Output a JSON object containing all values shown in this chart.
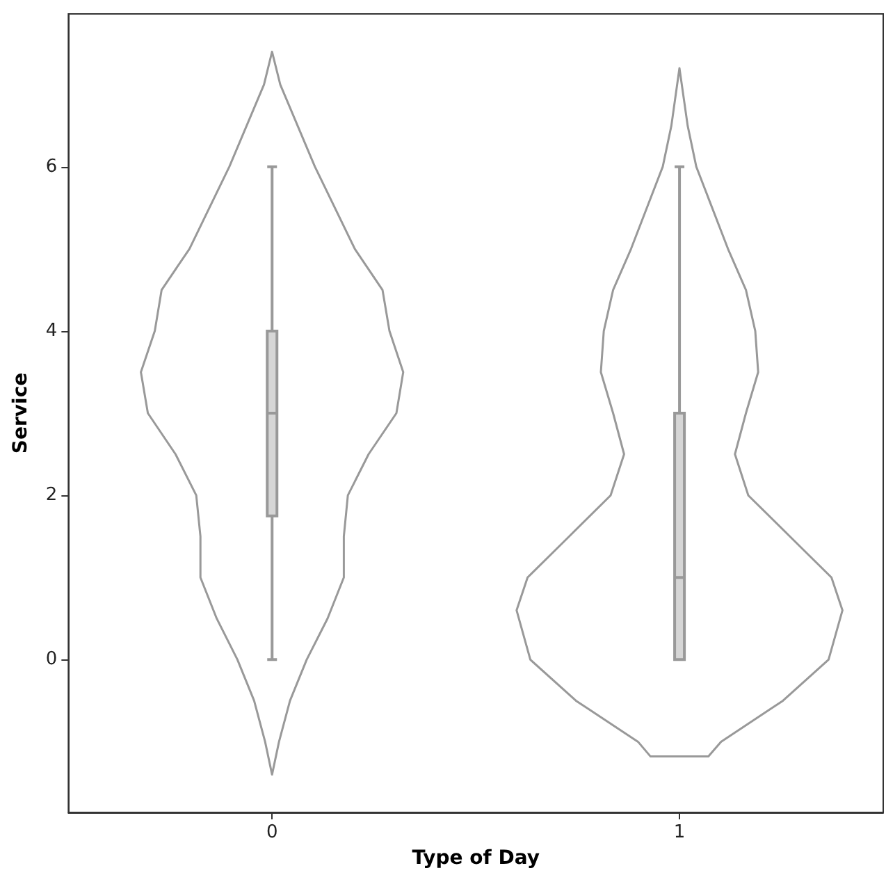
{
  "chart_data": {
    "type": "box",
    "xlabel": "Type of Day",
    "ylabel": "Service",
    "xlim": [
      -0.5,
      1.5
    ],
    "xticks": [
      0,
      1
    ],
    "ylim": [
      -1.86,
      7.86
    ],
    "yticks": [
      0,
      2,
      4,
      6
    ],
    "grid": false,
    "series": [
      {
        "type": "box",
        "color": "#999999",
        "x": [
          0,
          1
        ],
        "boxes": [
          {
            "low": 0,
            "q1": 1.75,
            "median": 3,
            "q3": 4,
            "high": 6
          },
          {
            "low": 0,
            "q1": 0,
            "median": 1,
            "q3": 3,
            "high": 6
          }
        ]
      }
    ]
  }
}
